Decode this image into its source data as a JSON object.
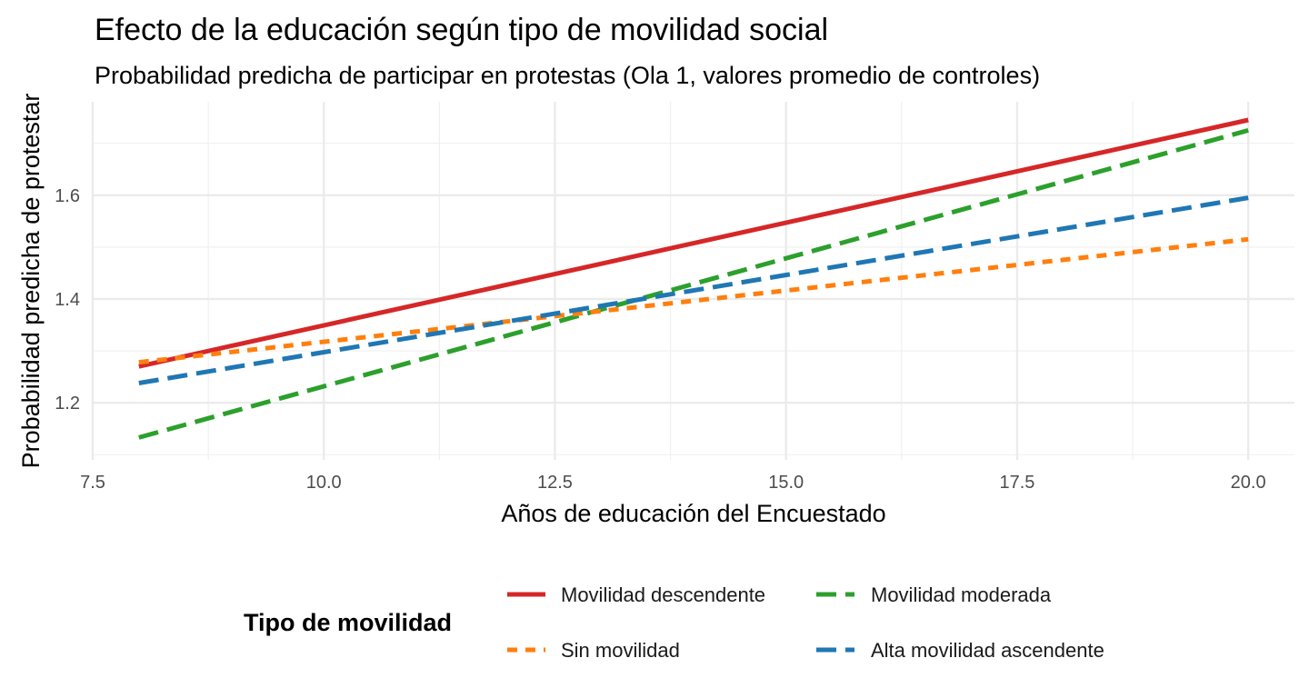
{
  "chart_data": {
    "type": "line",
    "title": "Efecto de la educación según tipo de movilidad social",
    "subtitle": "Probabilidad predicha de participar en protestas (Ola 1, valores promedio de controles)",
    "xlabel": "Años de educación del Encuestado",
    "ylabel": "Probabilidad predicha de protestar",
    "xlim": [
      7.5,
      20.5
    ],
    "ylim": [
      1.09,
      1.78
    ],
    "x_ticks": [
      "7.5",
      "10.0",
      "12.5",
      "15.0",
      "17.5",
      "20.0"
    ],
    "y_ticks": [
      "1.2",
      "1.4",
      "1.6"
    ],
    "grid": true,
    "legend_position": "bottom",
    "legend_title": "Tipo de movilidad",
    "series": [
      {
        "name": "Movilidad descendente",
        "color": "#d62728",
        "dash": "solid",
        "x": [
          8,
          20
        ],
        "y": [
          1.27,
          1.745
        ]
      },
      {
        "name": "Movilidad moderada",
        "color": "#2ca02c",
        "dash": "dashed",
        "x": [
          8,
          20
        ],
        "y": [
          1.133,
          1.725
        ]
      },
      {
        "name": "Sin movilidad",
        "color": "#ff7f0e",
        "dash": "dotted",
        "x": [
          8,
          20
        ],
        "y": [
          1.278,
          1.515
        ]
      },
      {
        "name": "Alta movilidad ascendente",
        "color": "#1f77b4",
        "dash": "dashed",
        "x": [
          8,
          20
        ],
        "y": [
          1.238,
          1.595
        ]
      }
    ]
  }
}
